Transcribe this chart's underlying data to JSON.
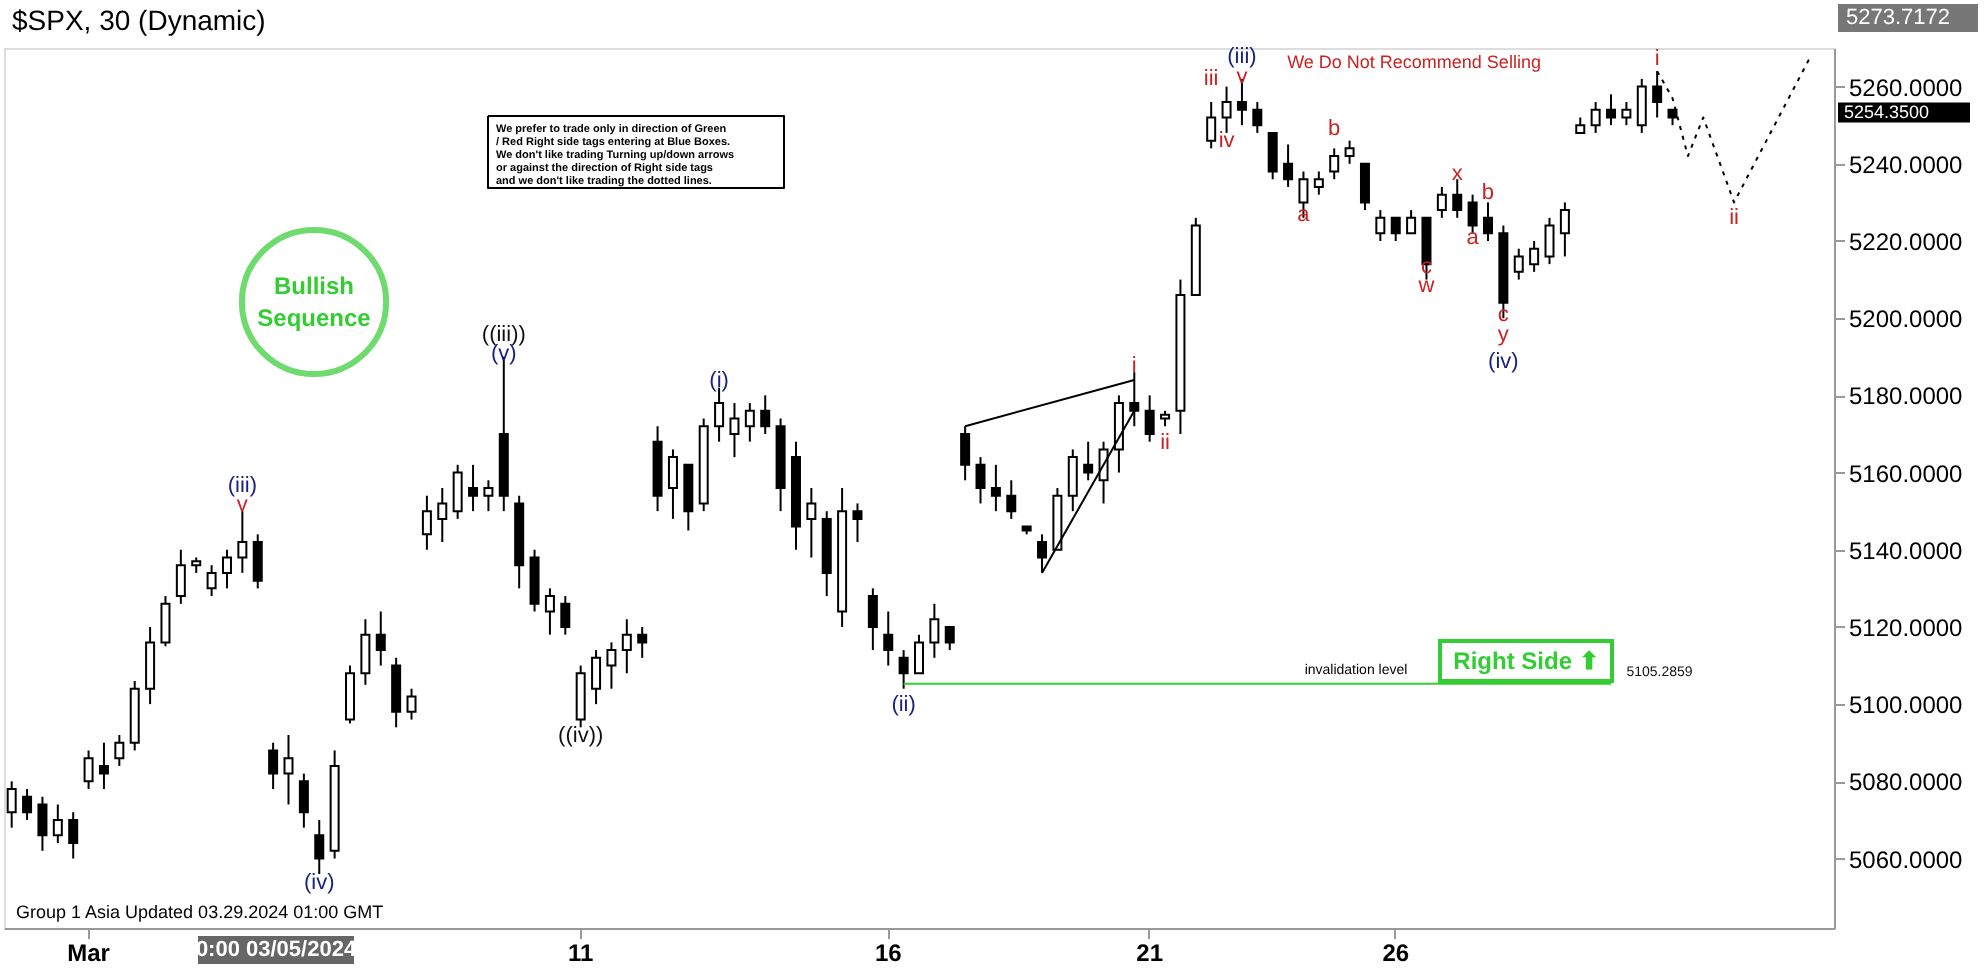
{
  "chart_data": {
    "type": "candlestick",
    "title": "$SPX, 30 (Dynamic)",
    "categories": [
      null,
      null,
      null,
      null,
      null,
      "Mar",
      null,
      null,
      null,
      null,
      null,
      null,
      null,
      null,
      null,
      null,
      null,
      null,
      null,
      null,
      null,
      null,
      null,
      null,
      null,
      null,
      null,
      null,
      null,
      null,
      null,
      null,
      null,
      null,
      null,
      null,
      null,
      "11",
      null,
      null,
      null,
      null,
      null,
      null,
      null,
      null,
      null,
      null,
      null,
      null,
      null,
      null,
      null,
      null,
      null,
      null,
      null,
      "16",
      null,
      null,
      null,
      null,
      null,
      null,
      null,
      null,
      null,
      null,
      null,
      null,
      null,
      null,
      null,
      null,
      "21",
      null,
      null,
      null,
      null,
      null,
      null,
      null,
      null,
      null,
      null,
      null,
      null,
      null,
      null,
      null,
      "26",
      null,
      null,
      null,
      null,
      null,
      null,
      null,
      null,
      null,
      null,
      null,
      null,
      null,
      null,
      null,
      null,
      null,
      null,
      null,
      null,
      null,
      null,
      null,
      null,
      null,
      null,
      null,
      null
    ],
    "ohlc": [
      [
        5072,
        5080,
        5068,
        5078
      ],
      [
        5076,
        5078,
        5070,
        5072
      ],
      [
        5074,
        5076,
        5062,
        5066
      ],
      [
        5066,
        5074,
        5064,
        5070
      ],
      [
        5070,
        5072,
        5060,
        5064
      ],
      [
        5080,
        5088,
        5078,
        5086
      ],
      [
        5084,
        5090,
        5078,
        5082
      ],
      [
        5086,
        5092,
        5084,
        5090
      ],
      [
        5090,
        5106,
        5088,
        5104
      ],
      [
        5104,
        5120,
        5100,
        5116
      ],
      [
        5116,
        5128,
        5115,
        5126
      ],
      [
        5128,
        5140,
        5126,
        5136
      ],
      [
        5136,
        5138,
        5134,
        5137
      ],
      [
        5130,
        5136,
        5128,
        5134
      ],
      [
        5134,
        5140,
        5130,
        5138
      ],
      [
        5138,
        5150,
        5134,
        5142
      ],
      [
        5142,
        5144,
        5130,
        5132
      ],
      [
        5088,
        5090,
        5078,
        5082
      ],
      [
        5082,
        5092,
        5074,
        5086
      ],
      [
        5080,
        5082,
        5068,
        5072
      ],
      [
        5066,
        5070,
        5056,
        5060
      ],
      [
        5062,
        5088,
        5060,
        5084
      ],
      [
        5096,
        5110,
        5095,
        5108
      ],
      [
        5108,
        5122,
        5105,
        5118
      ],
      [
        5118,
        5124,
        5110,
        5114
      ],
      [
        5110,
        5112,
        5094,
        5098
      ],
      [
        5098,
        5104,
        5096,
        5102
      ],
      [
        5144,
        5154,
        5140,
        5150
      ],
      [
        5148,
        5156,
        5142,
        5152
      ],
      [
        5150,
        5162,
        5148,
        5160
      ],
      [
        5156,
        5162,
        5150,
        5154
      ],
      [
        5154,
        5158,
        5150,
        5156
      ],
      [
        5170,
        5190,
        5150,
        5154
      ],
      [
        5152,
        5154,
        5130,
        5136
      ],
      [
        5138,
        5140,
        5124,
        5126
      ],
      [
        5124,
        5130,
        5118,
        5128
      ],
      [
        5126,
        5128,
        5118,
        5120
      ],
      [
        5096,
        5110,
        5094,
        5108
      ],
      [
        5104,
        5114,
        5100,
        5112
      ],
      [
        5110,
        5116,
        5104,
        5114
      ],
      [
        5114,
        5122,
        5108,
        5118
      ],
      [
        5118,
        5120,
        5112,
        5116
      ],
      [
        5168,
        5172,
        5150,
        5154
      ],
      [
        5156,
        5166,
        5148,
        5164
      ],
      [
        5162,
        5162,
        5145,
        5150
      ],
      [
        5152,
        5174,
        5150,
        5172
      ],
      [
        5172,
        5182,
        5168,
        5178
      ],
      [
        5170,
        5178,
        5164,
        5174
      ],
      [
        5172,
        5178,
        5168,
        5176
      ],
      [
        5176,
        5180,
        5170,
        5172
      ],
      [
        5172,
        5174,
        5150,
        5156
      ],
      [
        5164,
        5168,
        5140,
        5146
      ],
      [
        5148,
        5156,
        5138,
        5152
      ],
      [
        5148,
        5150,
        5128,
        5134
      ],
      [
        5124,
        5156,
        5120,
        5150
      ],
      [
        5150,
        5152,
        5142,
        5148
      ],
      [
        5128,
        5130,
        5114,
        5120
      ],
      [
        5118,
        5124,
        5110,
        5114
      ],
      [
        5112,
        5114,
        5104,
        5108
      ],
      [
        5108,
        5118,
        5108,
        5116
      ],
      [
        5116,
        5126,
        5112,
        5122
      ],
      [
        5120,
        5120,
        5114,
        5116
      ],
      [
        5170,
        5172,
        5158,
        5162
      ],
      [
        5162,
        5164,
        5152,
        5156
      ],
      [
        5156,
        5162,
        5150,
        5154
      ],
      [
        5154,
        5158,
        5148,
        5150
      ],
      [
        5146,
        5146,
        5144,
        5145
      ],
      [
        5142,
        5144,
        5134,
        5138
      ],
      [
        5140,
        5156,
        5140,
        5154
      ],
      [
        5154,
        5166,
        5150,
        5164
      ],
      [
        5162,
        5168,
        5158,
        5160
      ],
      [
        5158,
        5168,
        5152,
        5166
      ],
      [
        5166,
        5180,
        5160,
        5178
      ],
      [
        5178,
        5186,
        5172,
        5176
      ],
      [
        5176,
        5180,
        5168,
        5170
      ],
      [
        5174,
        5176,
        5172,
        5175
      ],
      [
        5176,
        5210,
        5170,
        5206
      ],
      [
        5206,
        5226,
        5206,
        5224
      ],
      [
        5246,
        5256,
        5244,
        5252
      ],
      [
        5252,
        5260,
        5248,
        5256
      ],
      [
        5256,
        5262,
        5250,
        5254
      ],
      [
        5254,
        5256,
        5248,
        5250
      ],
      [
        5248,
        5248,
        5236,
        5238
      ],
      [
        5240,
        5245,
        5234,
        5236
      ],
      [
        5230,
        5238,
        5226,
        5236
      ],
      [
        5234,
        5238,
        5232,
        5236
      ],
      [
        5238,
        5244,
        5236,
        5242
      ],
      [
        5242,
        5246,
        5240,
        5244
      ],
      [
        5240,
        5240,
        5228,
        5230
      ],
      [
        5222,
        5228,
        5220,
        5226
      ],
      [
        5226,
        5226,
        5220,
        5222
      ],
      [
        5222,
        5228,
        5222,
        5226
      ],
      [
        5226,
        5226,
        5210,
        5214
      ],
      [
        5228,
        5234,
        5226,
        5232
      ],
      [
        5232,
        5236,
        5226,
        5228
      ],
      [
        5230,
        5232,
        5222,
        5224
      ],
      [
        5226,
        5230,
        5220,
        5222
      ],
      [
        5222,
        5224,
        5200,
        5204
      ],
      [
        5212,
        5218,
        5210,
        5216
      ],
      [
        5214,
        5220,
        5212,
        5218
      ],
      [
        5216,
        5226,
        5214,
        5224
      ],
      [
        5222,
        5230,
        5216,
        5228
      ],
      [
        5248,
        5252,
        5248,
        5250
      ],
      [
        5250,
        5256,
        5248,
        5254
      ],
      [
        5254,
        5258,
        5250,
        5252
      ],
      [
        5252,
        5256,
        5250,
        5254
      ],
      [
        5250,
        5262,
        5248,
        5260
      ],
      [
        5260,
        5264,
        5252,
        5256
      ],
      [
        5254,
        5254,
        5250,
        5252
      ],
      null,
      null,
      null,
      null,
      null,
      null,
      null,
      null,
      null,
      null
    ],
    "series": [
      {
        "type": "line",
        "color": "#000000",
        "line_style": "solid",
        "values": [
          null,
          null,
          null,
          null,
          null,
          null,
          null,
          null,
          null,
          null,
          null,
          null,
          null,
          null,
          null,
          null,
          null,
          null,
          null,
          null,
          null,
          null,
          null,
          null,
          null,
          null,
          null,
          null,
          null,
          null,
          null,
          null,
          null,
          null,
          null,
          null,
          null,
          null,
          null,
          null,
          null,
          null,
          null,
          null,
          null,
          null,
          null,
          null,
          null,
          null,
          null,
          null,
          null,
          null,
          null,
          null,
          null,
          null,
          null,
          null,
          null,
          null,
          5172,
          null,
          null,
          null,
          null,
          null,
          null,
          null,
          null,
          null,
          null,
          5184,
          null,
          null,
          null,
          null,
          null,
          null,
          null,
          null,
          null,
          null,
          null,
          null,
          null,
          null,
          null,
          null,
          null,
          null,
          null,
          null,
          null,
          null,
          null,
          null,
          null,
          null,
          null,
          null,
          null,
          null,
          null,
          null,
          null,
          null,
          null,
          null,
          null,
          null,
          null,
          null,
          null,
          null,
          null,
          null,
          null
        ]
      },
      {
        "type": "line",
        "color": "#000000",
        "line_style": "solid",
        "values": [
          null,
          null,
          null,
          null,
          null,
          null,
          null,
          null,
          null,
          null,
          null,
          null,
          null,
          null,
          null,
          null,
          null,
          null,
          null,
          null,
          null,
          null,
          null,
          null,
          null,
          null,
          null,
          null,
          null,
          null,
          null,
          null,
          null,
          null,
          null,
          null,
          null,
          null,
          null,
          null,
          null,
          null,
          null,
          null,
          null,
          null,
          null,
          null,
          null,
          null,
          null,
          null,
          null,
          null,
          null,
          null,
          null,
          null,
          null,
          null,
          null,
          null,
          null,
          null,
          null,
          null,
          null,
          5134,
          null,
          null,
          null,
          null,
          null,
          5176,
          null,
          null,
          null,
          null,
          null,
          null,
          null,
          null,
          null,
          null,
          null,
          null,
          null,
          null,
          null,
          null,
          null,
          null,
          null,
          null,
          null,
          null,
          null,
          null,
          null,
          null,
          null,
          null,
          null,
          null,
          null,
          null,
          null,
          null,
          null,
          null,
          null,
          null,
          null,
          null,
          null,
          null,
          null,
          null,
          null
        ]
      },
      {
        "type": "line",
        "color": "#000000",
        "line_style": "dotted",
        "values": [
          null,
          null,
          null,
          null,
          null,
          null,
          null,
          null,
          null,
          null,
          null,
          null,
          null,
          null,
          null,
          null,
          null,
          null,
          null,
          null,
          null,
          null,
          null,
          null,
          null,
          null,
          null,
          null,
          null,
          null,
          null,
          null,
          null,
          null,
          null,
          null,
          null,
          null,
          null,
          null,
          null,
          null,
          null,
          null,
          null,
          null,
          null,
          null,
          null,
          null,
          null,
          null,
          null,
          null,
          null,
          null,
          null,
          null,
          null,
          null,
          null,
          null,
          null,
          null,
          null,
          null,
          null,
          null,
          null,
          null,
          null,
          null,
          null,
          null,
          null,
          null,
          null,
          null,
          null,
          null,
          null,
          null,
          null,
          null,
          null,
          null,
          null,
          null,
          null,
          null,
          null,
          null,
          null,
          null,
          null,
          null,
          null,
          null,
          null,
          null,
          null,
          null,
          null,
          null,
          null,
          null,
          null,
          5264,
          5257,
          5242,
          5252,
          null,
          5230,
          null,
          null,
          null,
          null,
          5268,
          null
        ]
      },
      {
        "type": "line",
        "color": "#33cc33",
        "line_style": "solid",
        "values": [
          null,
          null,
          null,
          null,
          null,
          null,
          null,
          null,
          null,
          null,
          null,
          null,
          null,
          null,
          null,
          null,
          null,
          null,
          null,
          null,
          null,
          null,
          null,
          null,
          null,
          null,
          null,
          null,
          null,
          null,
          null,
          null,
          null,
          null,
          null,
          null,
          null,
          null,
          null,
          null,
          null,
          null,
          null,
          null,
          null,
          null,
          null,
          null,
          null,
          null,
          null,
          null,
          null,
          null,
          null,
          null,
          null,
          null,
          5105.2859,
          null,
          null,
          null,
          null,
          null,
          null,
          null,
          null,
          null,
          null,
          null,
          null,
          null,
          null,
          null,
          null,
          null,
          null,
          null,
          null,
          null,
          null,
          null,
          null,
          null,
          null,
          null,
          null,
          null,
          null,
          null,
          null,
          null,
          null,
          null,
          null,
          null,
          null,
          null,
          null,
          null,
          null,
          null,
          null,
          null,
          5105.2859,
          null,
          null,
          null,
          null,
          null,
          null,
          null,
          null,
          null,
          null,
          null,
          null,
          null,
          null
        ]
      }
    ],
    "ylim": [
      5042,
      5270
    ],
    "yticks": [
      {
        "value": 5060,
        "label": "5060.0000"
      },
      {
        "value": 5080,
        "label": "5080.0000"
      },
      {
        "value": 5100,
        "label": "5100.0000"
      },
      {
        "value": 5120,
        "label": "5120.0000"
      },
      {
        "value": 5140,
        "label": "5140.0000"
      },
      {
        "value": 5160,
        "label": "5160.0000"
      },
      {
        "value": 5180,
        "label": "5180.0000"
      },
      {
        "value": 5200,
        "label": "5200.0000"
      },
      {
        "value": 5220,
        "label": "5220.0000"
      },
      {
        "value": 5240,
        "label": "5240.0000"
      },
      {
        "value": 5260,
        "label": "5260.0000"
      }
    ],
    "annotations": [
      "We prefer to trade only in direction of Green / Red Right side tags entering at Blue Boxes. We don't like trading Turning up/down arrows or against the direction of Right side tags and we don't like trading the dotted lines.",
      "Bullish Sequence",
      "We Do Not Recommend Selling",
      "invalidation level",
      "Right Side ⬆",
      "0:00 03/05/2024",
      "Group 1 Asia Updated 03.29.2024 01:00 GMT",
      "5273.7172",
      "5254.3500",
      "5105.2859",
      "(iii)",
      "v",
      "(iv)",
      "((iii))",
      "(v)",
      "((iv))",
      "(i)",
      "(ii)",
      "i",
      "ii",
      "(iii)",
      "iii",
      "v",
      "iv",
      "a",
      "b",
      "c",
      "w",
      "x",
      "b",
      "a",
      "c",
      "y",
      "(iv)",
      "i",
      "ii"
    ]
  }
}
